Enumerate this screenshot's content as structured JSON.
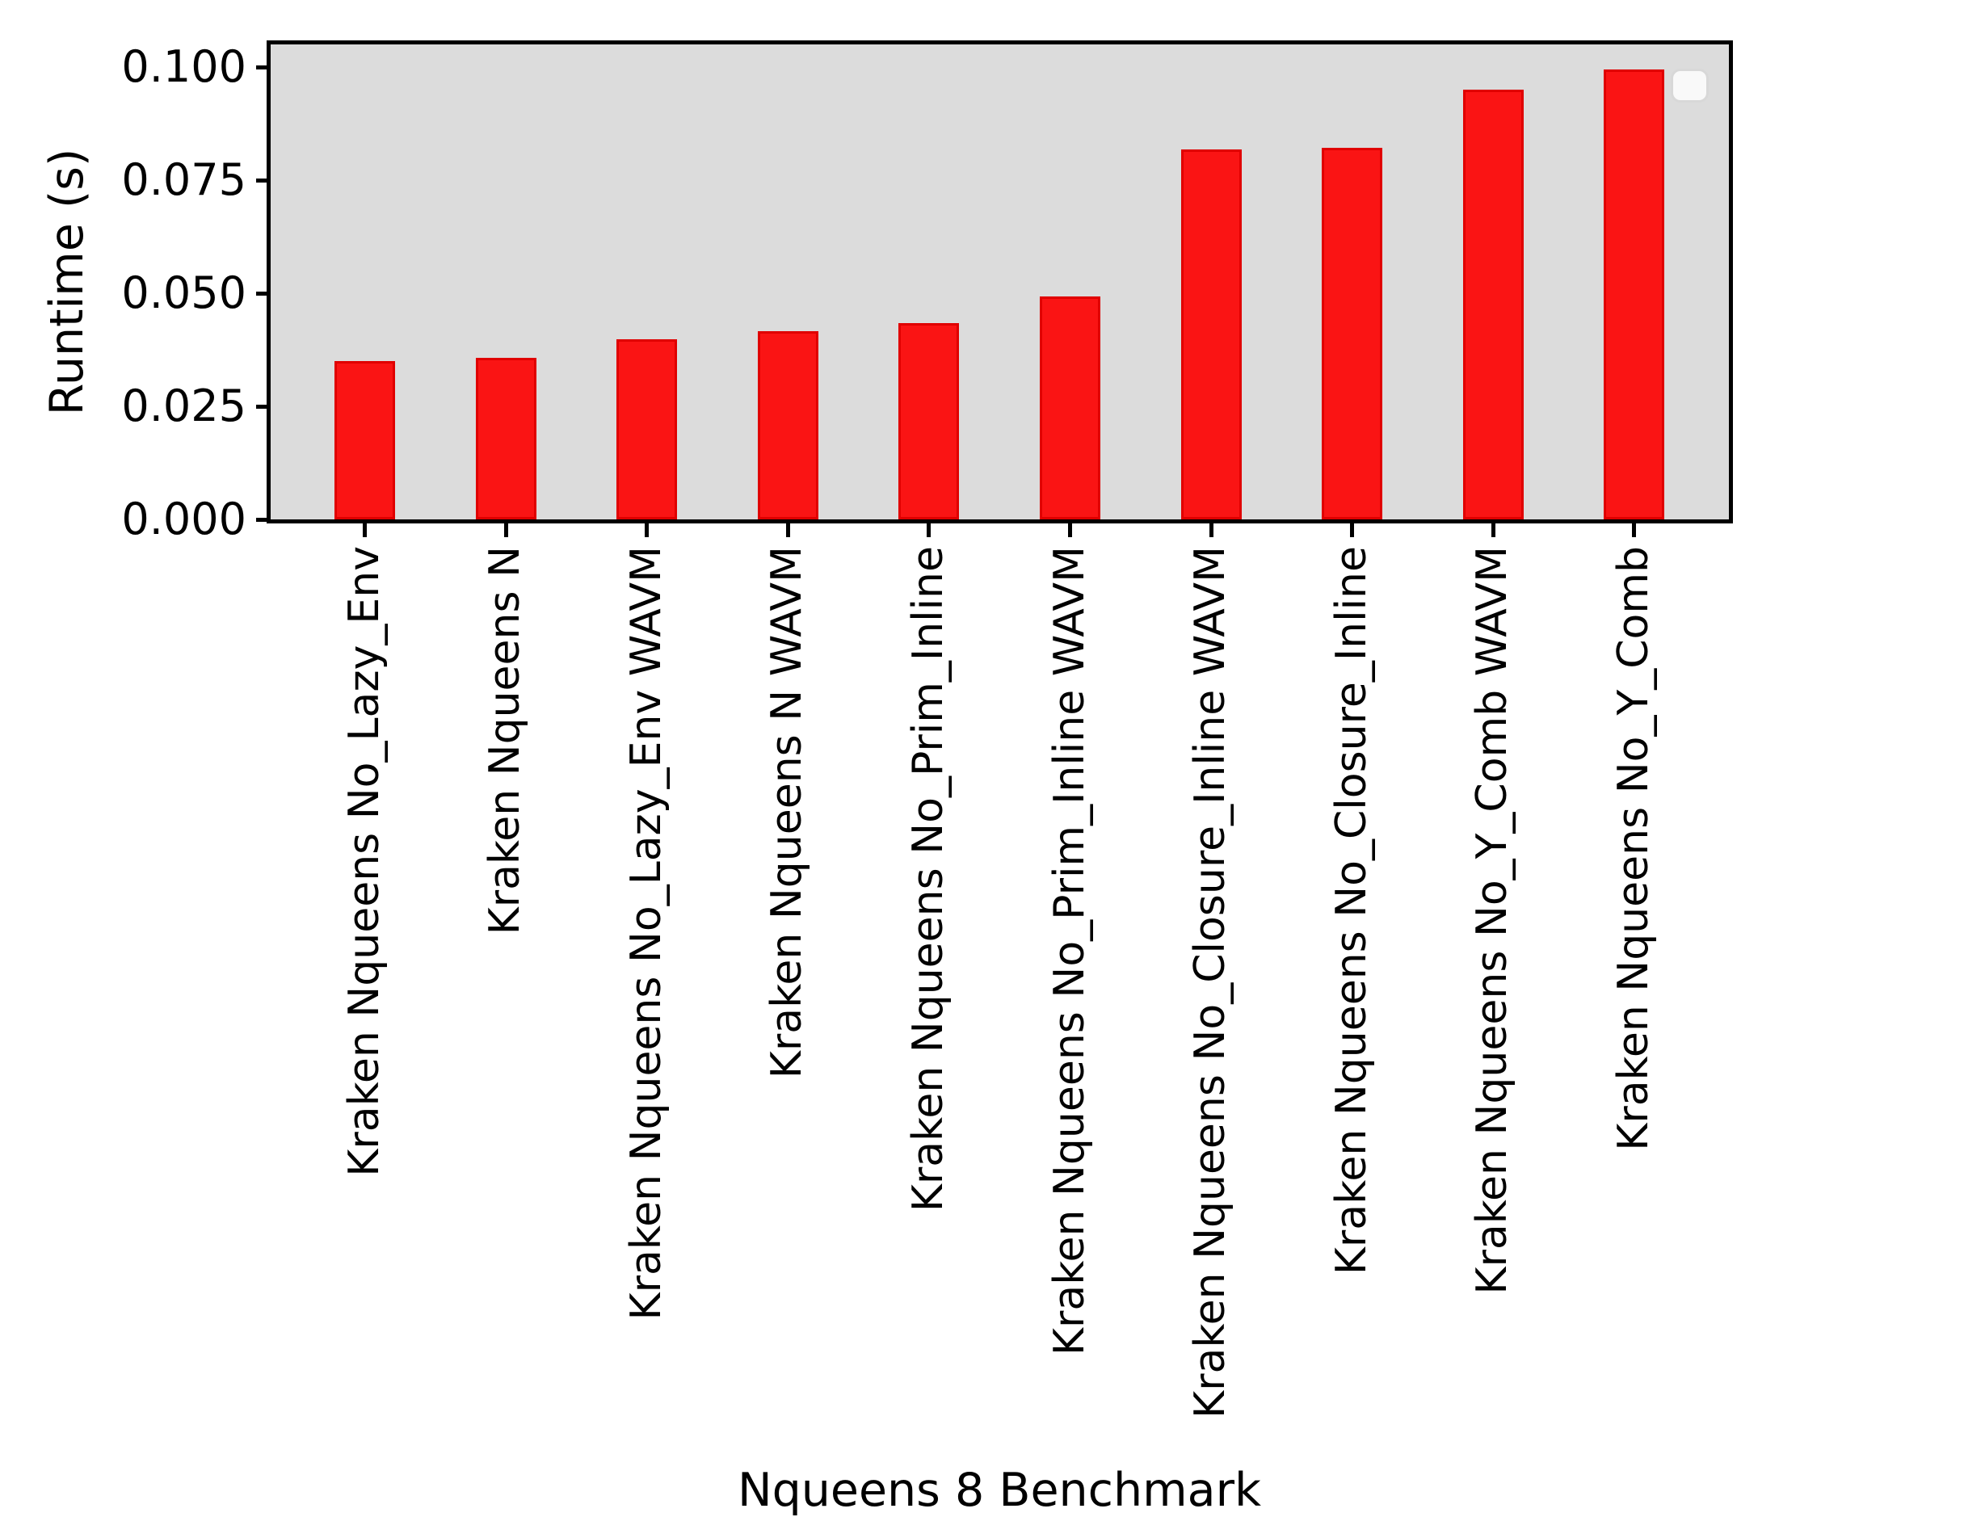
{
  "figure": {
    "background": "#ffffff",
    "plot_background": "#dcdcdc",
    "frame_color": "#000000",
    "legend": {
      "visible": true,
      "entries": []
    }
  },
  "chart_data": {
    "type": "bar",
    "title": "",
    "xlabel": "Nqueens 8 Benchmark",
    "ylabel": "Runtime (s)",
    "categories": [
      "Kraken Nqueens No_Lazy_Env",
      "Kraken Nqueens N",
      "Kraken Nqueens No_Lazy_Env WAVM",
      "Kraken Nqueens N WAVM",
      "Kraken Nqueens No_Prim_Inline",
      "Kraken Nqueens No_Prim_Inline WAVM",
      "Kraken Nqueens No_Closure_Inline WAVM",
      "Kraken Nqueens No_Closure_Inline",
      "Kraken Nqueens No_Y_Comb WAVM",
      "Kraken Nqueens No_Y_Comb"
    ],
    "values": [
      0.035,
      0.0357,
      0.0398,
      0.0416,
      0.0434,
      0.0493,
      0.0818,
      0.0821,
      0.095,
      0.0995
    ],
    "bar_color": "#fa1414",
    "bar_edge_color": "#e00000",
    "ylim": [
      0,
      0.105
    ],
    "ytick_labels": [
      "0.000",
      "0.025",
      "0.050",
      "0.075",
      "0.100"
    ],
    "ytick_values": [
      0,
      0.025,
      0.05,
      0.075,
      0.1
    ],
    "x_tick_rotation": 90,
    "grid": false,
    "legend_position": "upper right"
  }
}
